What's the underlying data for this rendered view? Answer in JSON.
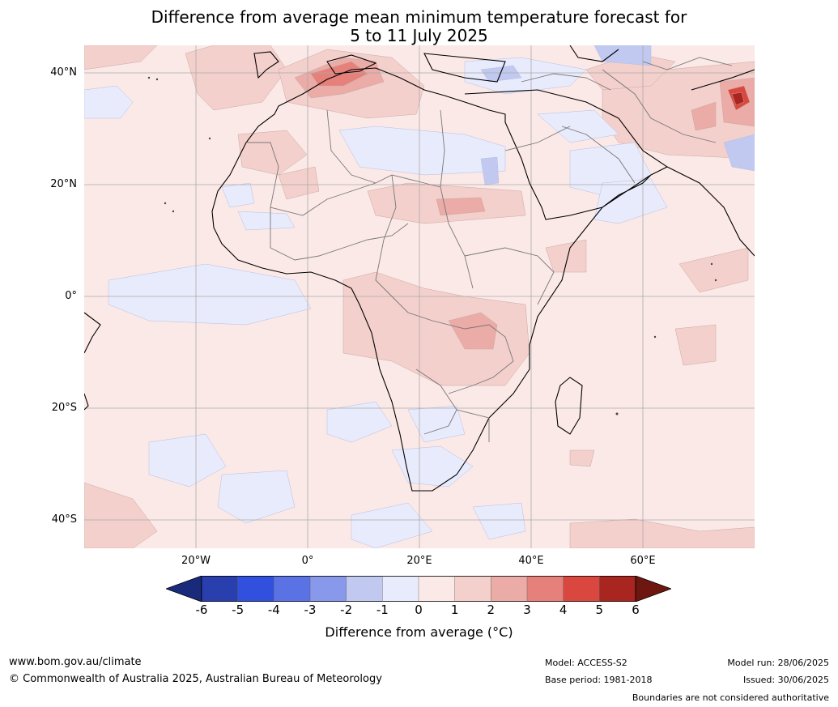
{
  "title_line1": "Difference from average mean minimum temperature forecast for",
  "title_line2": "5 to 11 July 2025",
  "lat_labels": [
    "40°N",
    "20°N",
    "0°",
    "20°S",
    "40°S"
  ],
  "lon_labels": [
    "20°W",
    "0°",
    "20°E",
    "40°E",
    "60°E"
  ],
  "colorbar": {
    "ticks": [
      "-6",
      "-5",
      "-4",
      "-3",
      "-2",
      "-1",
      "0",
      "1",
      "2",
      "3",
      "4",
      "5",
      "6"
    ],
    "colors": [
      "#1a2a7a",
      "#2a3fae",
      "#3150dd",
      "#5a72e4",
      "#8898ea",
      "#c1c9f1",
      "#e8ebfb",
      "#fbe9e7",
      "#f3d0cc",
      "#ebaba6",
      "#e5807a",
      "#d9473f",
      "#a8261f",
      "#6e1710"
    ],
    "label": "Difference from average (°C)"
  },
  "footer": {
    "website": "www.bom.gov.au/climate",
    "copyright": "© Commonwealth of Australia 2025, Australian Bureau of Meteorology",
    "model": "Model: ACCESS-S2",
    "base_period": "Base period: 1981-2018",
    "model_run": "Model run: 28/06/2025",
    "issued": "Issued: 30/06/2025",
    "disclaimer": "Boundaries are not considered authoritative"
  }
}
